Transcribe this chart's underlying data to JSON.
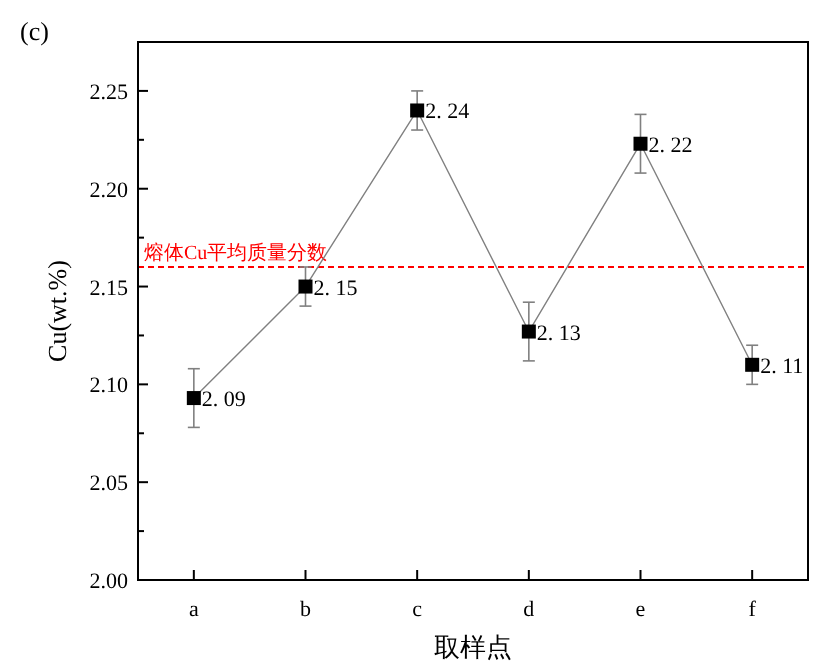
{
  "chart_data": {
    "type": "line",
    "title": "(c)",
    "xlabel": "取样点",
    "ylabel": "Cu(wt.%)",
    "categories": [
      "a",
      "b",
      "c",
      "d",
      "e",
      "f"
    ],
    "series": [
      {
        "color": "#000000",
        "values": [
          2.093,
          2.15,
          2.24,
          2.127,
          2.223,
          2.11
        ],
        "errors": [
          0.015,
          0.01,
          0.01,
          0.015,
          0.015,
          0.01
        ],
        "value_labels": [
          "2. 09",
          "2. 15",
          "2. 24",
          "2. 13",
          "2. 22",
          "2. 11"
        ]
      }
    ],
    "ylim": [
      2.0,
      2.275
    ],
    "yticks": [
      {
        "value": 2.0,
        "label": "2.00"
      },
      {
        "value": 2.025,
        "label": null
      },
      2.05,
      {
        "value": 2.075,
        "label": null
      },
      {
        "value": 2.1,
        "label": "2.10"
      },
      {
        "value": 2.125,
        "label": null
      },
      2.15,
      {
        "value": 2.175,
        "label": null
      },
      {
        "value": 2.2,
        "label": "2.20"
      },
      {
        "value": 2.225,
        "label": null
      },
      2.25
    ],
    "ref_lines": [
      {
        "axis": "y",
        "value": 2.16,
        "label": "熔体Cu平均质量分数",
        "color": "#ff0000",
        "line_style": "dashed"
      }
    ],
    "marker": "square",
    "grid": false
  }
}
